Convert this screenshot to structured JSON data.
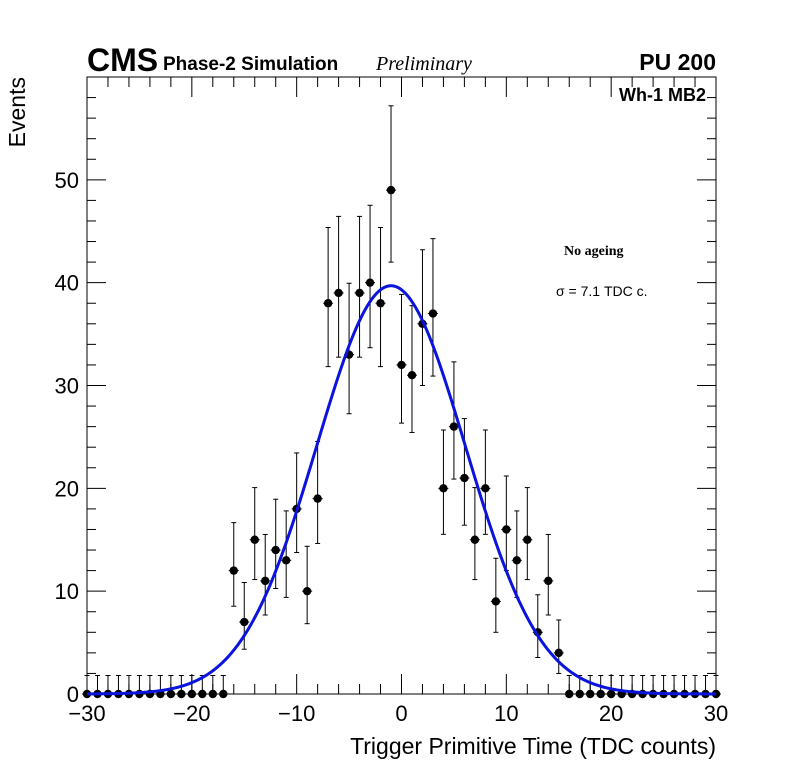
{
  "header": {
    "experiment": "CMS",
    "subtitle": "Phase-2 Simulation",
    "status": "Preliminary",
    "pileup": "PU 200",
    "region": "Wh-1 MB2"
  },
  "annotations": {
    "scenario": "No ageing",
    "sigma": "σ = 7.1 TDC c."
  },
  "colors": {
    "fit": "#0a14dc",
    "points": "#000000"
  },
  "chart_data": {
    "type": "scatter",
    "title": "",
    "xlabel": "Trigger Primitive Time (TDC counts)",
    "ylabel": "Events",
    "xlim": [
      -30,
      30
    ],
    "ylim": [
      0,
      60
    ],
    "x_ticks": [
      -30,
      -20,
      -10,
      0,
      10,
      20,
      30
    ],
    "x_tick_labels": [
      "−30",
      "−20",
      "−10",
      "0",
      "10",
      "20",
      "30"
    ],
    "y_ticks": [
      0,
      10,
      20,
      30,
      40,
      50
    ],
    "y_tick_labels": [
      "0",
      "10",
      "20",
      "30",
      "40",
      "50"
    ],
    "series": [
      {
        "name": "Data",
        "x": [
          -30,
          -29,
          -28,
          -27,
          -26,
          -25,
          -24,
          -23,
          -22,
          -21,
          -20,
          -19,
          -18,
          -17,
          -16,
          -15,
          -14,
          -13,
          -12,
          -11,
          -10,
          -9,
          -8,
          -7,
          -6,
          -5,
          -4,
          -3,
          -2,
          -1,
          0,
          1,
          2,
          3,
          4,
          5,
          6,
          7,
          8,
          9,
          10,
          11,
          12,
          13,
          14,
          15,
          16,
          17,
          18,
          19,
          20,
          21,
          22,
          23,
          24,
          25,
          26,
          27,
          28,
          29,
          30
        ],
        "values": [
          0,
          0,
          0,
          0,
          0,
          0,
          0,
          0,
          0,
          0,
          0,
          0,
          0,
          0,
          12,
          7,
          15,
          11,
          14,
          13,
          18,
          10,
          19,
          38,
          39,
          33,
          39,
          40,
          38,
          49,
          32,
          31,
          36,
          37,
          20,
          26,
          21,
          15,
          20,
          9,
          16,
          13,
          15,
          6,
          11,
          4,
          0,
          0,
          0,
          0,
          0,
          0,
          0,
          0,
          0,
          0,
          0,
          0,
          0,
          0,
          0
        ]
      },
      {
        "name": "Gaussian fit",
        "type": "line",
        "amplitude": 39.7,
        "mean": -1.0,
        "sigma": 7.1
      }
    ]
  }
}
